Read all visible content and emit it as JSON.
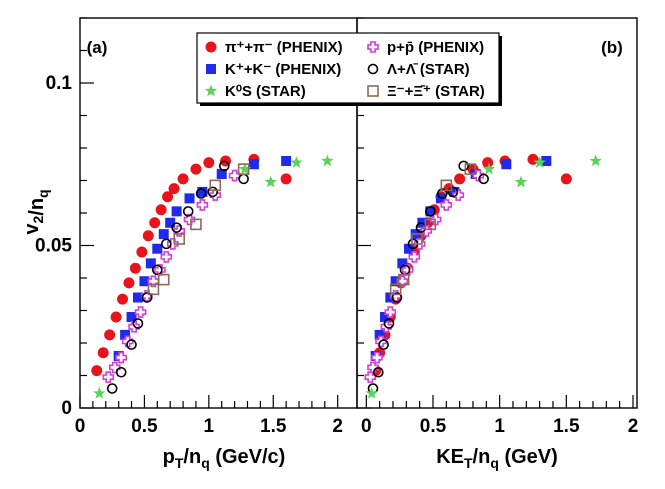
{
  "chart_data": {
    "type": "scatter",
    "ylabel": "v2/nq",
    "ylim": [
      0,
      0.12
    ],
    "yticks": [
      {
        "value": 0,
        "label": "0"
      },
      {
        "value": 0.05,
        "label": "0.05"
      },
      {
        "value": 0.1,
        "label": "0.1"
      }
    ],
    "legend": [
      {
        "key": "pi",
        "text": "π⁺+π⁻ (PHENIX)",
        "marker": "circle",
        "color": "#e8141b"
      },
      {
        "key": "ppbar",
        "text": "p+p̄ (PHENIX)",
        "marker": "open-cross",
        "color": "#d63dd6"
      },
      {
        "key": "kaon",
        "text": "K⁺+K⁻ (PHENIX)",
        "marker": "square",
        "color": "#1f2be8"
      },
      {
        "key": "lambda",
        "text": "Λ+Λ̄ (STAR)",
        "marker": "open-circle",
        "color": "#000000"
      },
      {
        "key": "k0s",
        "text": "K⁰S (STAR)",
        "marker": "star",
        "color": "#5bd35b"
      },
      {
        "key": "xi",
        "text": "Ξ⁻+Ξ̄⁺ (STAR)",
        "marker": "open-square",
        "color": "#8b6a5a"
      }
    ],
    "panels": [
      {
        "label": "(a)",
        "xlabel": "pT/nq (GeV/c)",
        "xlim": [
          0,
          2.15
        ],
        "xticks": [
          {
            "value": 0,
            "label": "0"
          },
          {
            "value": 0.5,
            "label": "0.5"
          },
          {
            "value": 1,
            "label": "1"
          },
          {
            "value": 1.5,
            "label": "1.5"
          },
          {
            "value": 2,
            "label": "2"
          }
        ],
        "series": [
          {
            "key": "pi",
            "points": [
              {
                "x": 0.13,
                "y": 0.0115
              },
              {
                "x": 0.18,
                "y": 0.017
              },
              {
                "x": 0.23,
                "y": 0.0225
              },
              {
                "x": 0.28,
                "y": 0.028
              },
              {
                "x": 0.33,
                "y": 0.0335
              },
              {
                "x": 0.38,
                "y": 0.0385
              },
              {
                "x": 0.43,
                "y": 0.043
              },
              {
                "x": 0.48,
                "y": 0.048
              },
              {
                "x": 0.53,
                "y": 0.053
              },
              {
                "x": 0.58,
                "y": 0.057
              },
              {
                "x": 0.63,
                "y": 0.061
              },
              {
                "x": 0.68,
                "y": 0.065
              },
              {
                "x": 0.73,
                "y": 0.0675
              },
              {
                "x": 0.8,
                "y": 0.0705
              },
              {
                "x": 0.9,
                "y": 0.0735
              },
              {
                "x": 1.0,
                "y": 0.0755
              },
              {
                "x": 1.13,
                "y": 0.076
              },
              {
                "x": 1.35,
                "y": 0.0765
              },
              {
                "x": 1.6,
                "y": 0.0705
              }
            ]
          },
          {
            "key": "kaon",
            "points": [
              {
                "x": 0.3,
                "y": 0.016
              },
              {
                "x": 0.35,
                "y": 0.0225
              },
              {
                "x": 0.4,
                "y": 0.028
              },
              {
                "x": 0.45,
                "y": 0.034
              },
              {
                "x": 0.5,
                "y": 0.039
              },
              {
                "x": 0.55,
                "y": 0.0445
              },
              {
                "x": 0.6,
                "y": 0.049
              },
              {
                "x": 0.65,
                "y": 0.0535
              },
              {
                "x": 0.7,
                "y": 0.057
              },
              {
                "x": 0.75,
                "y": 0.0605
              },
              {
                "x": 0.85,
                "y": 0.0645
              },
              {
                "x": 0.95,
                "y": 0.0665
              },
              {
                "x": 1.1,
                "y": 0.072
              },
              {
                "x": 1.35,
                "y": 0.075
              },
              {
                "x": 1.6,
                "y": 0.076
              }
            ]
          },
          {
            "key": "ppbar",
            "points": [
              {
                "x": 0.22,
                "y": 0.0095
              },
              {
                "x": 0.27,
                "y": 0.0125
              },
              {
                "x": 0.32,
                "y": 0.0155
              },
              {
                "x": 0.37,
                "y": 0.0205
              },
              {
                "x": 0.42,
                "y": 0.025
              },
              {
                "x": 0.47,
                "y": 0.0295
              },
              {
                "x": 0.52,
                "y": 0.0345
              },
              {
                "x": 0.57,
                "y": 0.039
              },
              {
                "x": 0.62,
                "y": 0.0425
              },
              {
                "x": 0.67,
                "y": 0.0465
              },
              {
                "x": 0.72,
                "y": 0.0505
              },
              {
                "x": 0.77,
                "y": 0.0545
              },
              {
                "x": 0.85,
                "y": 0.058
              },
              {
                "x": 0.95,
                "y": 0.0625
              },
              {
                "x": 1.05,
                "y": 0.0655
              },
              {
                "x": 1.2,
                "y": 0.0715
              }
            ]
          },
          {
            "key": "lambda",
            "points": [
              {
                "x": 0.25,
                "y": 0.006
              },
              {
                "x": 0.32,
                "y": 0.011
              },
              {
                "x": 0.4,
                "y": 0.0195
              },
              {
                "x": 0.45,
                "y": 0.026
              },
              {
                "x": 0.52,
                "y": 0.034
              },
              {
                "x": 0.6,
                "y": 0.0425
              },
              {
                "x": 0.67,
                "y": 0.0505
              },
              {
                "x": 0.75,
                "y": 0.0555
              },
              {
                "x": 0.84,
                "y": 0.0605
              },
              {
                "x": 0.94,
                "y": 0.066
              },
              {
                "x": 1.03,
                "y": 0.0665
              },
              {
                "x": 1.12,
                "y": 0.0745
              },
              {
                "x": 1.27,
                "y": 0.0705
              }
            ]
          },
          {
            "key": "k0s",
            "points": [
              {
                "x": 0.15,
                "y": 0.0045
              },
              {
                "x": 1.28,
                "y": 0.0735
              },
              {
                "x": 1.48,
                "y": 0.0695
              },
              {
                "x": 1.68,
                "y": 0.0755
              },
              {
                "x": 1.92,
                "y": 0.076
              }
            ]
          },
          {
            "key": "xi",
            "points": [
              {
                "x": 0.57,
                "y": 0.0365
              },
              {
                "x": 0.65,
                "y": 0.0395
              },
              {
                "x": 0.77,
                "y": 0.052
              },
              {
                "x": 0.9,
                "y": 0.0565
              },
              {
                "x": 1.05,
                "y": 0.0685
              },
              {
                "x": 1.27,
                "y": 0.0735
              }
            ]
          }
        ]
      },
      {
        "label": "(b)",
        "xlabel": "KET/nq (GeV)",
        "xlim": [
          -0.07,
          2.03
        ],
        "xticks": [
          {
            "value": 0,
            "label": "0"
          },
          {
            "value": 0.5,
            "label": "0.5"
          },
          {
            "value": 1,
            "label": "1"
          },
          {
            "value": 1.5,
            "label": "1.5"
          },
          {
            "value": 2,
            "label": "2"
          }
        ],
        "series": [
          {
            "key": "pi",
            "points": [
              {
                "x": 0.07,
                "y": 0.0115
              },
              {
                "x": 0.1,
                "y": 0.017
              },
              {
                "x": 0.14,
                "y": 0.0225
              },
              {
                "x": 0.18,
                "y": 0.028
              },
              {
                "x": 0.22,
                "y": 0.0335
              },
              {
                "x": 0.26,
                "y": 0.0385
              },
              {
                "x": 0.31,
                "y": 0.043
              },
              {
                "x": 0.36,
                "y": 0.048
              },
              {
                "x": 0.41,
                "y": 0.053
              },
              {
                "x": 0.46,
                "y": 0.057
              },
              {
                "x": 0.51,
                "y": 0.061
              },
              {
                "x": 0.56,
                "y": 0.065
              },
              {
                "x": 0.62,
                "y": 0.0675
              },
              {
                "x": 0.7,
                "y": 0.0705
              },
              {
                "x": 0.8,
                "y": 0.0735
              },
              {
                "x": 0.91,
                "y": 0.0755
              },
              {
                "x": 1.04,
                "y": 0.076
              },
              {
                "x": 1.25,
                "y": 0.0765
              },
              {
                "x": 1.5,
                "y": 0.0705
              }
            ]
          },
          {
            "key": "kaon",
            "points": [
              {
                "x": 0.07,
                "y": 0.016
              },
              {
                "x": 0.1,
                "y": 0.0225
              },
              {
                "x": 0.14,
                "y": 0.028
              },
              {
                "x": 0.18,
                "y": 0.034
              },
              {
                "x": 0.22,
                "y": 0.039
              },
              {
                "x": 0.27,
                "y": 0.0445
              },
              {
                "x": 0.32,
                "y": 0.049
              },
              {
                "x": 0.37,
                "y": 0.0535
              },
              {
                "x": 0.42,
                "y": 0.057
              },
              {
                "x": 0.48,
                "y": 0.0605
              },
              {
                "x": 0.56,
                "y": 0.0645
              },
              {
                "x": 0.66,
                "y": 0.0665
              },
              {
                "x": 0.82,
                "y": 0.072
              },
              {
                "x": 1.05,
                "y": 0.075
              },
              {
                "x": 1.35,
                "y": 0.076
              }
            ]
          },
          {
            "key": "ppbar",
            "points": [
              {
                "x": 0.03,
                "y": 0.0095
              },
              {
                "x": 0.05,
                "y": 0.0125
              },
              {
                "x": 0.08,
                "y": 0.0155
              },
              {
                "x": 0.11,
                "y": 0.0205
              },
              {
                "x": 0.15,
                "y": 0.025
              },
              {
                "x": 0.18,
                "y": 0.0295
              },
              {
                "x": 0.22,
                "y": 0.0345
              },
              {
                "x": 0.27,
                "y": 0.039
              },
              {
                "x": 0.31,
                "y": 0.0425
              },
              {
                "x": 0.36,
                "y": 0.0465
              },
              {
                "x": 0.4,
                "y": 0.0505
              },
              {
                "x": 0.45,
                "y": 0.0545
              },
              {
                "x": 0.52,
                "y": 0.058
              },
              {
                "x": 0.6,
                "y": 0.0625
              },
              {
                "x": 0.69,
                "y": 0.0655
              },
              {
                "x": 0.84,
                "y": 0.0715
              }
            ]
          },
          {
            "key": "lambda",
            "points": [
              {
                "x": 0.05,
                "y": 0.006
              },
              {
                "x": 0.09,
                "y": 0.011
              },
              {
                "x": 0.13,
                "y": 0.0195
              },
              {
                "x": 0.17,
                "y": 0.026
              },
              {
                "x": 0.23,
                "y": 0.034
              },
              {
                "x": 0.29,
                "y": 0.0425
              },
              {
                "x": 0.35,
                "y": 0.0505
              },
              {
                "x": 0.41,
                "y": 0.0555
              },
              {
                "x": 0.48,
                "y": 0.0605
              },
              {
                "x": 0.57,
                "y": 0.066
              },
              {
                "x": 0.65,
                "y": 0.0665
              },
              {
                "x": 0.73,
                "y": 0.0745
              },
              {
                "x": 0.88,
                "y": 0.0705
              }
            ]
          },
          {
            "key": "k0s",
            "points": [
              {
                "x": 0.04,
                "y": 0.0045
              },
              {
                "x": 0.92,
                "y": 0.0735
              },
              {
                "x": 1.16,
                "y": 0.0695
              },
              {
                "x": 1.3,
                "y": 0.0755
              },
              {
                "x": 1.72,
                "y": 0.076
              }
            ]
          },
          {
            "key": "xi",
            "points": [
              {
                "x": 0.22,
                "y": 0.0365
              },
              {
                "x": 0.28,
                "y": 0.0395
              },
              {
                "x": 0.38,
                "y": 0.052
              },
              {
                "x": 0.48,
                "y": 0.0565
              },
              {
                "x": 0.6,
                "y": 0.0685
              },
              {
                "x": 0.78,
                "y": 0.0735
              }
            ]
          }
        ]
      }
    ]
  }
}
